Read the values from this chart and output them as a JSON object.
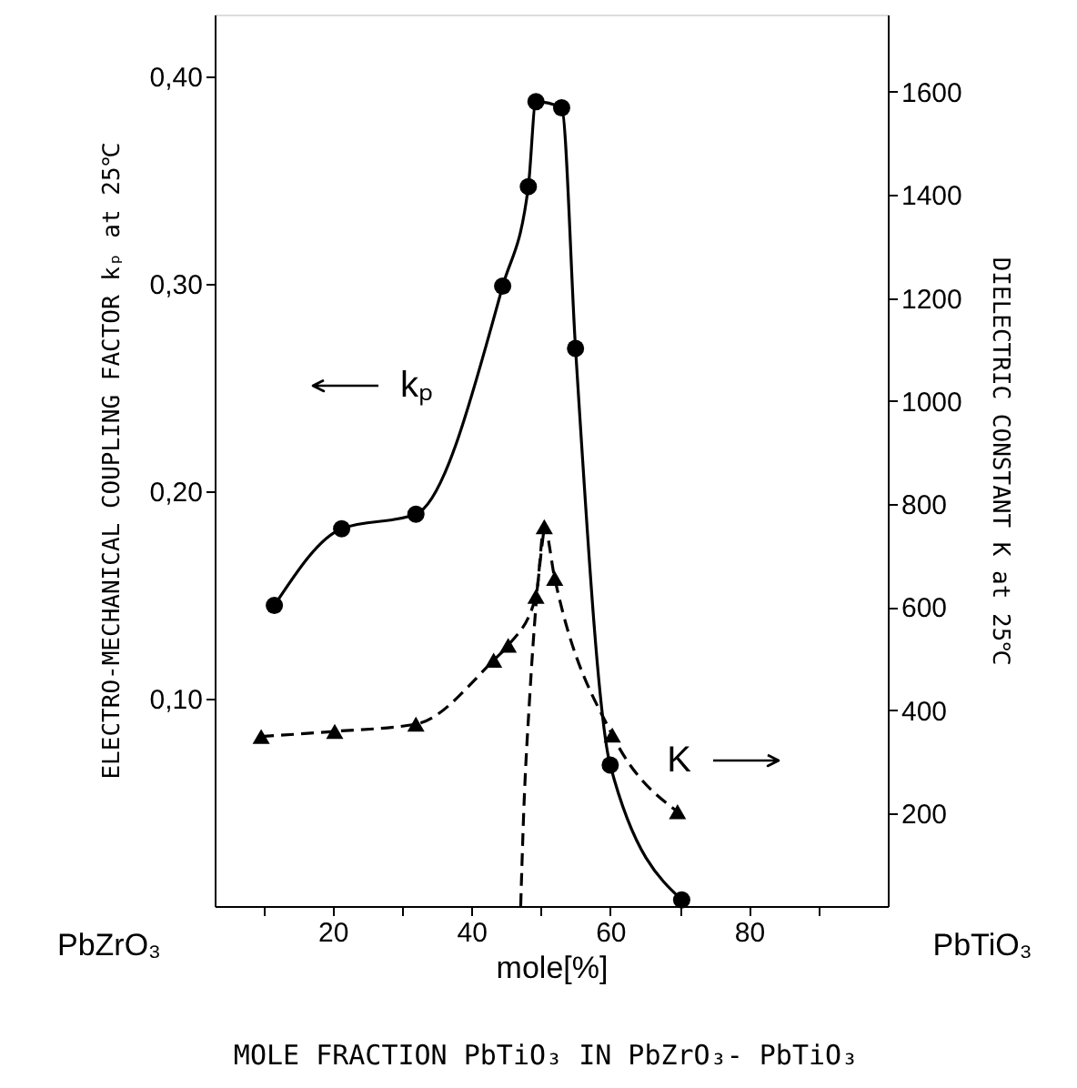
{
  "chart_data": {
    "type": "line",
    "xlabel": "mole[%]",
    "ylabel": "ELECTRO-MECHANICAL COUPLING FACTOR kₚ at 25℃",
    "y2label": "DIELECTRIC CONSTANT K at 25℃",
    "annotations": [
      "PbZrO₃",
      "PbTiO₃",
      "MOLE FRACTION PbTiO₃ IN PbZrO₃- PbTiO₃",
      "kₚ",
      "K"
    ],
    "xlim": [
      3,
      100
    ],
    "xticks": [
      {
        "value": 10,
        "label": null
      },
      20,
      {
        "value": 30,
        "label": null
      },
      40,
      {
        "value": 50,
        "label": null
      },
      60,
      {
        "value": 70,
        "label": null
      },
      80,
      {
        "value": 90,
        "label": null
      }
    ],
    "ylim": [
      0,
      0.43
    ],
    "yticks": [
      {
        "value": 0.1,
        "label": "0,10"
      },
      {
        "value": 0.2,
        "label": "0,20"
      },
      {
        "value": 0.3,
        "label": "0,30"
      },
      {
        "value": 0.4,
        "label": "0,40"
      }
    ],
    "y2lim": [
      20,
      1750
    ],
    "y2ticks": [
      200,
      400,
      600,
      800,
      1000,
      1200,
      1400,
      1600
    ],
    "grid": false,
    "series": [
      {
        "color": "#000000",
        "marker": "circle",
        "line_style": "solid",
        "x": [
          11.6,
          21.3,
          32,
          44.5,
          48.2,
          49.3,
          53,
          55,
          60,
          70.3
        ],
        "values": [
          0.145,
          0.182,
          0.189,
          0.299,
          0.347,
          0.388,
          0.385,
          0.269,
          0.068,
          0.003
        ]
      },
      {
        "axis": "y2",
        "color": "#000000",
        "marker": "triangle",
        "line_style": "dashed",
        "x": [
          9.7,
          20.3,
          32,
          43.2,
          45.3,
          49.3,
          50.5,
          52,
          60.3,
          69.7
        ],
        "values": [
          349,
          359,
          373,
          497,
          526,
          621,
          756,
          656,
          352,
          203
        ]
      },
      {
        "axis": "y2",
        "color": "#000000",
        "marker": "none",
        "line_style": "dashed",
        "x": [
          47.1,
          47.5,
          48.4,
          49.3,
          50.5
        ],
        "values": [
          20,
          189,
          426,
          603,
          756
        ]
      }
    ]
  }
}
